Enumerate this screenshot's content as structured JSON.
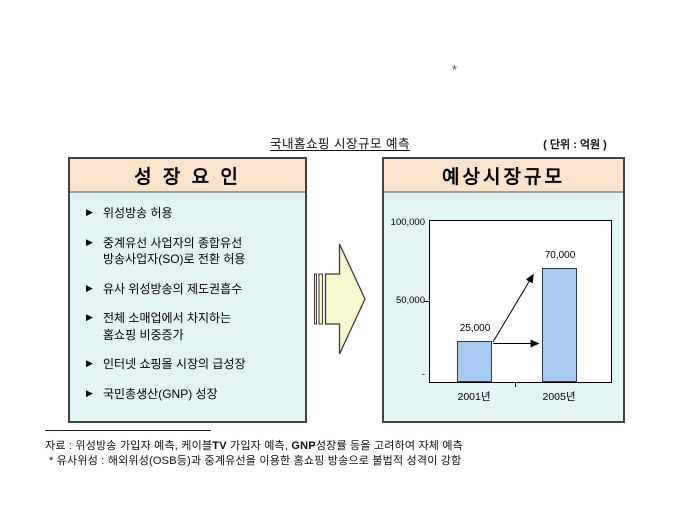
{
  "page": {
    "asterisk": "*",
    "title": "국내홈쇼핑 시장규모 예측",
    "unit": "( 단위 : 억원 )"
  },
  "growth_panel": {
    "header": "성 장 요 인",
    "items": [
      {
        "bullet": "▶",
        "lines": [
          "위성방송 허용"
        ]
      },
      {
        "bullet": "▶",
        "lines": [
          "중계유선 사업자의 종합유선",
          "방송사업자(SO)로 전환 허용"
        ]
      },
      {
        "bullet": "▶",
        "lines": [
          "유사 위성방송의 제도권흡수"
        ]
      },
      {
        "bullet": "▶",
        "lines": [
          "전체 소매업에서 차지하는",
          "홈쇼핑 비중증가"
        ]
      },
      {
        "bullet": "▶",
        "lines": [
          "인터넷 쇼핑몰 시장의 급성장"
        ]
      },
      {
        "bullet": "▶",
        "lines": [
          "국민총생산(GNP) 성장"
        ]
      }
    ]
  },
  "forecast_panel": {
    "header": "예상시장규모"
  },
  "chart_data": {
    "type": "bar",
    "title": "예상시장규모",
    "unit": "억원",
    "categories": [
      "2001년",
      "2005년"
    ],
    "values": [
      25000,
      70000
    ],
    "value_labels": [
      "25,000",
      "70,000"
    ],
    "y_tick_labels": [
      "100,000",
      "50,000",
      "-"
    ],
    "ylim": [
      0,
      100000
    ],
    "grid": false,
    "legend": false,
    "annotations": [
      "horizontal arrow from top of 2001 bar to left edge of 2005 bar",
      "diagonal arrow from top of 2001 bar to top of 2005 bar"
    ]
  },
  "footer": {
    "source_prefix": "자료 : 위성방송 가입자 예측, 케이블",
    "source_bold1": "TV",
    "source_mid": " 가입자 예측, ",
    "source_bold2": "GNP",
    "source_suffix": "성장률 등을 고려하여 자체 예측",
    "note": "* 유사위성 : 해외위성(OSB등)과 중계유선을 이용한 홈쇼핑 방송으로 불법적 성격이 강함"
  },
  "colors": {
    "panel_header_bg": "#FCE4CC",
    "panel_body_bg": "#E2F4F4",
    "panel_border": "#44423C",
    "header_divider": "#8FA0A0",
    "bar_fill": "#A6CAF0",
    "bar_border": "#2A3A5A",
    "arrow_fill": "#F8F8CF",
    "arrow_border": "#3A3A32"
  }
}
